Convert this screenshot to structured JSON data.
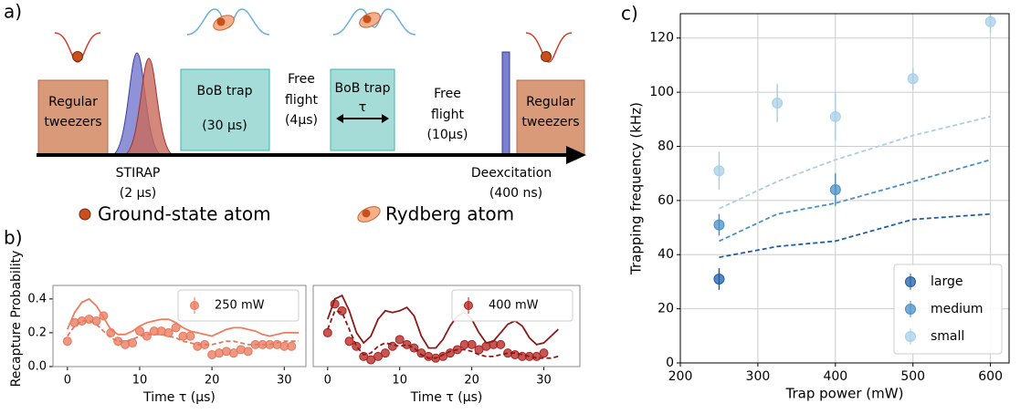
{
  "panel_labels": [
    "a)",
    "b)",
    "c)"
  ],
  "diagram": {
    "stages": [
      {
        "lines": [
          "Regular",
          "tweezers"
        ]
      },
      {
        "lines": [
          "BoB trap",
          "(30 μs)"
        ]
      },
      {
        "lines": [
          "Free",
          "flight",
          "(4μs)"
        ]
      },
      {
        "lines": [
          "BoB trap"
        ],
        "arrow": "τ"
      },
      {
        "lines": [
          "Free",
          "flight",
          "(10μs)"
        ]
      },
      {
        "lines": [
          "Regular",
          "tweezers"
        ]
      }
    ],
    "pulses": [
      {
        "lines": [
          "STIRAP",
          "(2 μs)"
        ]
      },
      {
        "lines": [
          "Deexcitation",
          "(400 ns)"
        ]
      }
    ],
    "legend": [
      "Ground-state atom",
      "Rydberg atom"
    ]
  },
  "chart_data": [
    {
      "type": "line",
      "xlabel": "Time τ (μs)",
      "ylabel": "Recapture Probability",
      "xlim": [
        -2,
        33
      ],
      "xticks": [
        0,
        10,
        20,
        30
      ],
      "ylim": [
        0,
        0.48
      ],
      "yticks": [
        0.0,
        0.2,
        0.4
      ],
      "legend": "upper right",
      "x": [
        0,
        1,
        2,
        3,
        4,
        5,
        6,
        7,
        8,
        9,
        10,
        11,
        12,
        13,
        14,
        15,
        16,
        17,
        18,
        19,
        20,
        21,
        22,
        23,
        24,
        25,
        26,
        27,
        28,
        29,
        30,
        31,
        32
      ],
      "series": [
        {
          "name": "250 mW",
          "mode": "markers",
          "color": "#e8765a",
          "values": [
            0.15,
            0.26,
            0.27,
            0.28,
            0.27,
            0.3,
            0.2,
            0.15,
            0.13,
            0.14,
            0.21,
            0.18,
            0.21,
            0.21,
            0.2,
            0.23,
            0.18,
            0.18,
            0.12,
            0.13,
            0.07,
            0.08,
            0.09,
            0.08,
            0.1,
            0.09,
            0.13,
            0.13,
            0.13,
            0.13,
            0.12,
            0.12,
            null
          ]
        },
        {
          "mode": "solid",
          "color": "#f07c5e",
          "values": [
            0.22,
            0.32,
            0.38,
            0.4,
            0.36,
            0.29,
            0.22,
            0.19,
            0.19,
            0.21,
            0.24,
            0.26,
            0.27,
            0.28,
            0.28,
            0.26,
            0.23,
            0.21,
            0.2,
            0.19,
            0.18,
            0.2,
            0.22,
            0.23,
            0.23,
            0.22,
            0.21,
            0.19,
            0.18,
            0.19,
            0.2,
            0.2,
            0.2
          ]
        },
        {
          "mode": "dashed",
          "color": "#e8765a",
          "values": [
            0.18,
            0.24,
            0.27,
            0.27,
            0.25,
            0.21,
            0.17,
            0.15,
            0.15,
            0.16,
            0.18,
            0.19,
            0.19,
            0.19,
            0.18,
            0.17,
            0.15,
            0.14,
            0.13,
            0.13,
            0.13,
            0.14,
            0.15,
            0.15,
            0.14,
            0.13,
            0.13,
            0.13,
            0.13,
            0.14,
            0.15,
            0.15,
            0.15
          ]
        }
      ]
    },
    {
      "type": "line",
      "xlabel": "Time τ (μs)",
      "xlim": [
        -2,
        35
      ],
      "xticks": [
        0,
        10,
        20,
        30
      ],
      "ylim": [
        0,
        0.48
      ],
      "legend": "upper right",
      "x": [
        0,
        1,
        2,
        3,
        4,
        5,
        6,
        7,
        8,
        9,
        10,
        11,
        12,
        13,
        14,
        15,
        16,
        17,
        18,
        19,
        20,
        21,
        22,
        23,
        24,
        25,
        26,
        27,
        28,
        29,
        30,
        31,
        32
      ],
      "series": [
        {
          "name": "400 mW",
          "mode": "markers",
          "color": "#b0201c",
          "values": [
            0.2,
            0.37,
            0.33,
            0.15,
            0.12,
            0.06,
            0.04,
            0.06,
            0.08,
            0.12,
            0.16,
            0.13,
            0.11,
            0.08,
            0.06,
            0.05,
            0.06,
            0.08,
            0.1,
            0.13,
            0.13,
            0.1,
            0.12,
            0.13,
            0.13,
            0.08,
            0.07,
            0.06,
            0.06,
            0.06,
            0.08,
            null,
            null
          ]
        },
        {
          "mode": "solid",
          "color": "#8b1a1a",
          "values": [
            0.28,
            0.4,
            0.42,
            0.33,
            0.2,
            0.14,
            0.18,
            0.28,
            0.33,
            0.32,
            0.33,
            0.35,
            0.3,
            0.18,
            0.11,
            0.11,
            0.16,
            0.24,
            0.3,
            0.32,
            0.28,
            0.2,
            0.14,
            0.15,
            0.2,
            0.25,
            0.27,
            0.24,
            0.17,
            0.13,
            0.14,
            0.18,
            0.22
          ]
        },
        {
          "mode": "dashed",
          "color": "#8b1a1a",
          "values": [
            0.22,
            0.33,
            0.32,
            0.22,
            0.12,
            0.07,
            0.08,
            0.12,
            0.14,
            0.13,
            0.12,
            0.13,
            0.11,
            0.07,
            0.05,
            0.05,
            0.07,
            0.09,
            0.1,
            0.1,
            0.09,
            0.07,
            0.06,
            0.06,
            0.07,
            0.08,
            0.08,
            0.07,
            0.06,
            0.05,
            0.05,
            0.05,
            0.06
          ]
        }
      ]
    },
    {
      "type": "line",
      "xlabel": "Trap power (mW)",
      "ylabel": "Trapping frequency (kHz)",
      "xlim": [
        200,
        624
      ],
      "xticks": [
        200,
        300,
        400,
        500,
        600
      ],
      "ylim": [
        0,
        129
      ],
      "yticks": [
        0,
        20,
        40,
        60,
        80,
        100,
        120
      ],
      "grid": true,
      "legend": "lower right",
      "series": [
        {
          "name": "large",
          "mode": "markers",
          "color": "#1f5fa8",
          "x": [
            250
          ],
          "values": [
            31
          ],
          "errors": [
            4
          ]
        },
        {
          "name": "medium",
          "mode": "markers",
          "color": "#4a90c8",
          "x": [
            250,
            400
          ],
          "values": [
            51,
            64
          ],
          "errors": [
            4,
            6
          ]
        },
        {
          "name": "small",
          "mode": "markers",
          "color": "#a9cfe8",
          "x": [
            250,
            325,
            400,
            500,
            600
          ],
          "values": [
            71,
            96,
            91,
            105,
            126
          ],
          "errors": [
            7,
            7,
            9,
            4,
            4
          ]
        },
        {
          "mode": "dashed",
          "color": "#1f5fa8",
          "x": [
            250,
            325,
            400,
            500,
            600
          ],
          "values": [
            39,
            43,
            45,
            53,
            55
          ]
        },
        {
          "mode": "dashed",
          "color": "#4a90c8",
          "x": [
            250,
            325,
            400,
            500,
            600
          ],
          "values": [
            45,
            55,
            59,
            67,
            75
          ]
        },
        {
          "mode": "dashed",
          "color": "#a9cfe8",
          "x": [
            250,
            325,
            400,
            500,
            600
          ],
          "values": [
            57,
            67,
            75,
            84,
            91
          ]
        }
      ]
    }
  ]
}
